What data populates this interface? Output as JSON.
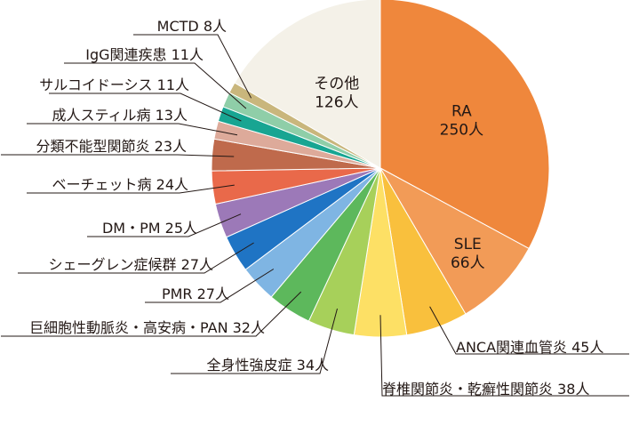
{
  "chart_data": {
    "type": "pie",
    "unit": "人",
    "slices": [
      {
        "name": "RA",
        "value": 250,
        "color": "#ef873c"
      },
      {
        "name": "SLE",
        "value": 66,
        "color": "#f29b57"
      },
      {
        "name": "ANCA関連血管炎",
        "value": 45,
        "color": "#f9c03d"
      },
      {
        "name": "脊椎関節炎・乾癬性関節炎",
        "value": 38,
        "color": "#fde065"
      },
      {
        "name": "全身性強皮症",
        "value": 34,
        "color": "#a7d05a"
      },
      {
        "name": "巨細胞性動脈炎・高安病・PAN",
        "value": 32,
        "color": "#5db85c"
      },
      {
        "name": "PMR",
        "value": 27,
        "color": "#7fb5e3"
      },
      {
        "name": "シェーグレン症候群",
        "value": 27,
        "color": "#1f74c4"
      },
      {
        "name": "DM・PM",
        "value": 25,
        "color": "#9c79b8"
      },
      {
        "name": "ベーチェット病",
        "value": 24,
        "color": "#e9694a"
      },
      {
        "name": "分類不能型関節炎",
        "value": 23,
        "color": "#bf6a4c"
      },
      {
        "name": "成人スティル病",
        "value": 13,
        "color": "#ddaa9a"
      },
      {
        "name": "サルコイドーシス",
        "value": 11,
        "color": "#18a592"
      },
      {
        "name": "IgG関連疾患",
        "value": 11,
        "color": "#8fcea8"
      },
      {
        "name": "MCTD",
        "value": 8,
        "color": "#c9b67c"
      },
      {
        "name": "その他",
        "value": 126,
        "color": "#f4f1e8"
      }
    ]
  }
}
